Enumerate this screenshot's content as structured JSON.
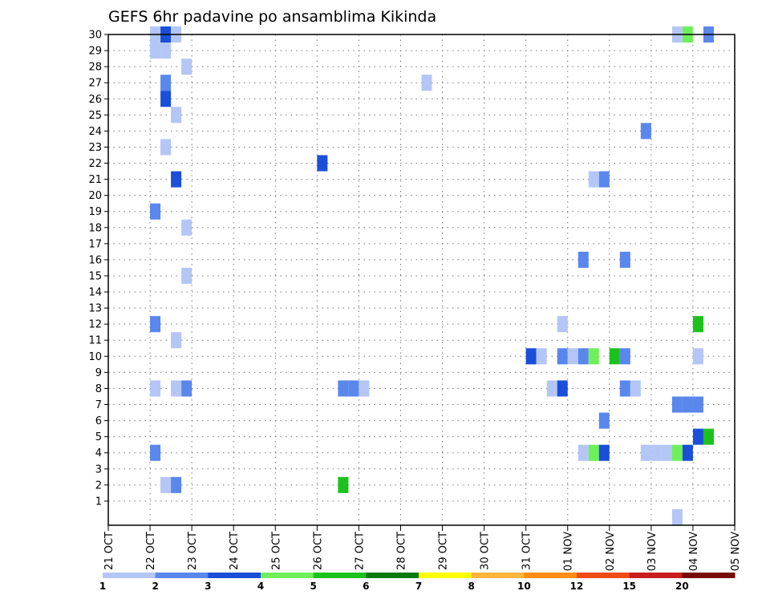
{
  "chart_data": {
    "type": "heatmap",
    "title": "GEFS 6hr padavine po ansamblima Kikinda",
    "xlabel": "",
    "ylabel": "",
    "x_tick_labels": [
      "21 OCT",
      "22 OCT",
      "23 OCT",
      "24 OCT",
      "25 OCT",
      "26 OCT",
      "27 OCT",
      "28 OCT",
      "29 OCT",
      "30 OCT",
      "31 OCT",
      "01 NOV",
      "02 NOV",
      "03 NOV",
      "04 NOV",
      "05 NOV"
    ],
    "y_tick_labels": [
      "1",
      "2",
      "3",
      "4",
      "5",
      "6",
      "7",
      "8",
      "9",
      "10",
      "11",
      "12",
      "13",
      "14",
      "15",
      "16",
      "17",
      "18",
      "19",
      "20",
      "21",
      "22",
      "23",
      "24",
      "25",
      "26",
      "27",
      "28",
      "29",
      "30"
    ],
    "xlim": [
      0,
      60
    ],
    "ylim": [
      0,
      30
    ],
    "x_units": "6-hour steps from 21 OCT 00Z",
    "grid": true,
    "colorbar": {
      "placement": "bottom",
      "labels": [
        "1",
        "2",
        "3",
        "4",
        "5",
        "6",
        "7",
        "8",
        "10",
        "12",
        "15",
        "20"
      ],
      "colors": [
        "#b4c6f6",
        "#5a87ec",
        "#1a4fd8",
        "#6ef05a",
        "#1cc21c",
        "#0a7a0a",
        "#ffff00",
        "#ffb43c",
        "#ff8c14",
        "#f04b14",
        "#c81e1e",
        "#780a0a"
      ]
    },
    "cells": [
      {
        "t": 4,
        "m": 30,
        "v": 1.5
      },
      {
        "t": 5,
        "m": 30,
        "v": 3.5
      },
      {
        "t": 6,
        "m": 30,
        "v": 1.5
      },
      {
        "t": 4,
        "m": 29,
        "v": 1.5
      },
      {
        "t": 5,
        "m": 29,
        "v": 1.5
      },
      {
        "t": 7,
        "m": 28,
        "v": 1.5
      },
      {
        "t": 5,
        "m": 27,
        "v": 2.5
      },
      {
        "t": 5,
        "m": 26,
        "v": 3.5
      },
      {
        "t": 6,
        "m": 25,
        "v": 1.5
      },
      {
        "t": 5,
        "m": 23,
        "v": 1.5
      },
      {
        "t": 6,
        "m": 21,
        "v": 3.5
      },
      {
        "t": 4,
        "m": 19,
        "v": 2.5
      },
      {
        "t": 7,
        "m": 18,
        "v": 1.5
      },
      {
        "t": 7,
        "m": 15,
        "v": 1.5
      },
      {
        "t": 4,
        "m": 12,
        "v": 2.5
      },
      {
        "t": 6,
        "m": 11,
        "v": 1.5
      },
      {
        "t": 4,
        "m": 8,
        "v": 1.5
      },
      {
        "t": 6,
        "m": 8,
        "v": 1.5
      },
      {
        "t": 7,
        "m": 8,
        "v": 2.5
      },
      {
        "t": 5,
        "m": 2,
        "v": 1.5
      },
      {
        "t": 6,
        "m": 2,
        "v": 2.5
      },
      {
        "t": 4,
        "m": 4,
        "v": 2.5
      },
      {
        "t": 20,
        "m": 22,
        "v": 3.5
      },
      {
        "t": 22,
        "m": 8,
        "v": 2.5
      },
      {
        "t": 23,
        "m": 8,
        "v": 2.5
      },
      {
        "t": 24,
        "m": 8,
        "v": 1.5
      },
      {
        "t": 22,
        "m": 2,
        "v": 5.5
      },
      {
        "t": 30,
        "m": 27,
        "v": 1.5
      },
      {
        "t": 40,
        "m": 10,
        "v": 3.5
      },
      {
        "t": 41,
        "m": 10,
        "v": 1.5
      },
      {
        "t": 43,
        "m": 10,
        "v": 2.5
      },
      {
        "t": 44,
        "m": 10,
        "v": 1.5
      },
      {
        "t": 45,
        "m": 10,
        "v": 2.5
      },
      {
        "t": 46,
        "m": 10,
        "v": 4.5
      },
      {
        "t": 48,
        "m": 10,
        "v": 5.5
      },
      {
        "t": 49,
        "m": 10,
        "v": 2.5
      },
      {
        "t": 43,
        "m": 12,
        "v": 1.5
      },
      {
        "t": 42,
        "m": 8,
        "v": 1.5
      },
      {
        "t": 43,
        "m": 8,
        "v": 3.5
      },
      {
        "t": 45,
        "m": 16,
        "v": 2.5
      },
      {
        "t": 46,
        "m": 21,
        "v": 1.5
      },
      {
        "t": 47,
        "m": 21,
        "v": 2.5
      },
      {
        "t": 49,
        "m": 16,
        "v": 2.5
      },
      {
        "t": 49,
        "m": 8,
        "v": 2.5
      },
      {
        "t": 50,
        "m": 8,
        "v": 1.5
      },
      {
        "t": 47,
        "m": 6,
        "v": 2.5
      },
      {
        "t": 45,
        "m": 4,
        "v": 1.5
      },
      {
        "t": 46,
        "m": 4,
        "v": 4.5
      },
      {
        "t": 47,
        "m": 4,
        "v": 3.5
      },
      {
        "t": 51,
        "m": 24,
        "v": 2.5
      },
      {
        "t": 51,
        "m": 4,
        "v": 1.5
      },
      {
        "t": 52,
        "m": 4,
        "v": 1.5
      },
      {
        "t": 53,
        "m": 4,
        "v": 1.5
      },
      {
        "t": 54,
        "m": 4,
        "v": 4.5
      },
      {
        "t": 55,
        "m": 4,
        "v": 3.5
      },
      {
        "t": 54,
        "m": 7,
        "v": 2.5
      },
      {
        "t": 55,
        "m": 7,
        "v": 2.5
      },
      {
        "t": 56,
        "m": 7,
        "v": 2.5
      },
      {
        "t": 56,
        "m": 5,
        "v": 3.5
      },
      {
        "t": 57,
        "m": 5,
        "v": 5.5
      },
      {
        "t": 56,
        "m": 10,
        "v": 1.5
      },
      {
        "t": 56,
        "m": 12,
        "v": 5.5
      },
      {
        "t": 55,
        "m": 30,
        "v": 4.5
      },
      {
        "t": 57,
        "m": 30,
        "v": 2.5
      },
      {
        "t": 54,
        "m": 30,
        "v": 1.5
      },
      {
        "t": 54,
        "m": 0,
        "v": 1.5
      }
    ]
  }
}
